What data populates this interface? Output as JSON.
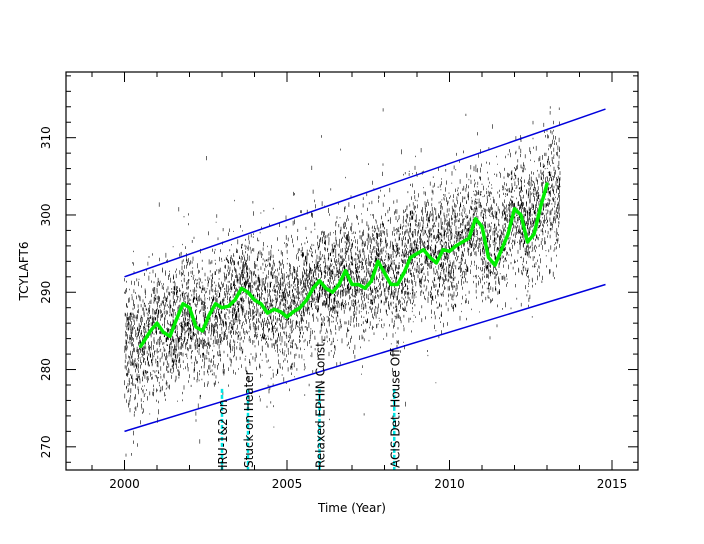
{
  "chart_data": {
    "type": "scatter",
    "xlabel": "Time (Year)",
    "ylabel": "TCYLAFT6",
    "xlim": [
      1998.2,
      2015.8
    ],
    "ylim": [
      267,
      318.5
    ],
    "xticks": [
      2000,
      2005,
      2010,
      2015
    ],
    "yticks": [
      270,
      280,
      290,
      300,
      310
    ],
    "colors": {
      "scatter": "#000000",
      "trend": "#00ee00",
      "envelope": "#0000dd",
      "event_marker": "#00e5e5",
      "axes": "#000000"
    },
    "scatter_extent": {
      "x": [
        2000.0,
        2013.4
      ],
      "center_start": 283.0,
      "center_end": 302.0,
      "spread": 7.5
    },
    "envelope_upper": [
      {
        "x": 2000.0,
        "y": 292.0
      },
      {
        "x": 2014.8,
        "y": 313.7
      }
    ],
    "envelope_lower": [
      {
        "x": 2000.0,
        "y": 272.0
      },
      {
        "x": 2014.8,
        "y": 291.0
      }
    ],
    "smooth_fit": {
      "x": [
        2000.5,
        2000.8,
        2001.0,
        2001.2,
        2001.4,
        2001.6,
        2001.8,
        2002.0,
        2002.2,
        2002.4,
        2002.6,
        2002.8,
        2003.0,
        2003.2,
        2003.4,
        2003.6,
        2003.8,
        2004.0,
        2004.2,
        2004.4,
        2004.6,
        2004.8,
        2005.0,
        2005.2,
        2005.4,
        2005.6,
        2005.8,
        2006.0,
        2006.2,
        2006.4,
        2006.6,
        2006.8,
        2007.0,
        2007.2,
        2007.4,
        2007.6,
        2007.8,
        2008.0,
        2008.2,
        2008.4,
        2008.6,
        2008.8,
        2009.0,
        2009.2,
        2009.4,
        2009.6,
        2009.8,
        2010.0,
        2010.2,
        2010.4,
        2010.6,
        2010.8,
        2011.0,
        2011.2,
        2011.4,
        2011.6,
        2011.8,
        2012.0,
        2012.2,
        2012.4,
        2012.6,
        2012.8,
        2013.0
      ],
      "y": [
        283.0,
        285.0,
        286.0,
        284.8,
        284.3,
        286.5,
        288.5,
        288.0,
        285.5,
        285.0,
        287.0,
        288.5,
        288.0,
        288.2,
        289.0,
        290.5,
        290.0,
        289.0,
        288.5,
        287.3,
        287.8,
        287.5,
        286.8,
        287.5,
        288.0,
        289.0,
        290.5,
        291.5,
        290.5,
        290.0,
        291.0,
        292.8,
        291.0,
        291.0,
        290.5,
        291.5,
        294.0,
        292.5,
        291.0,
        291.0,
        292.5,
        294.5,
        295.0,
        295.5,
        294.5,
        293.8,
        295.5,
        295.3,
        296.0,
        296.5,
        297.0,
        299.5,
        298.5,
        294.5,
        293.5,
        295.5,
        297.5,
        300.8,
        300.0,
        296.5,
        297.5,
        301.0,
        304.0
      ]
    },
    "annotations": [
      {
        "x": 2003.0,
        "label": "IRU-1&2 on"
      },
      {
        "x": 2003.8,
        "label": "Stuck-on Heater"
      },
      {
        "x": 2006.0,
        "label": "Relaxed EPHIN Const."
      },
      {
        "x": 2008.3,
        "label": "ACIS Det. House Off"
      }
    ]
  }
}
